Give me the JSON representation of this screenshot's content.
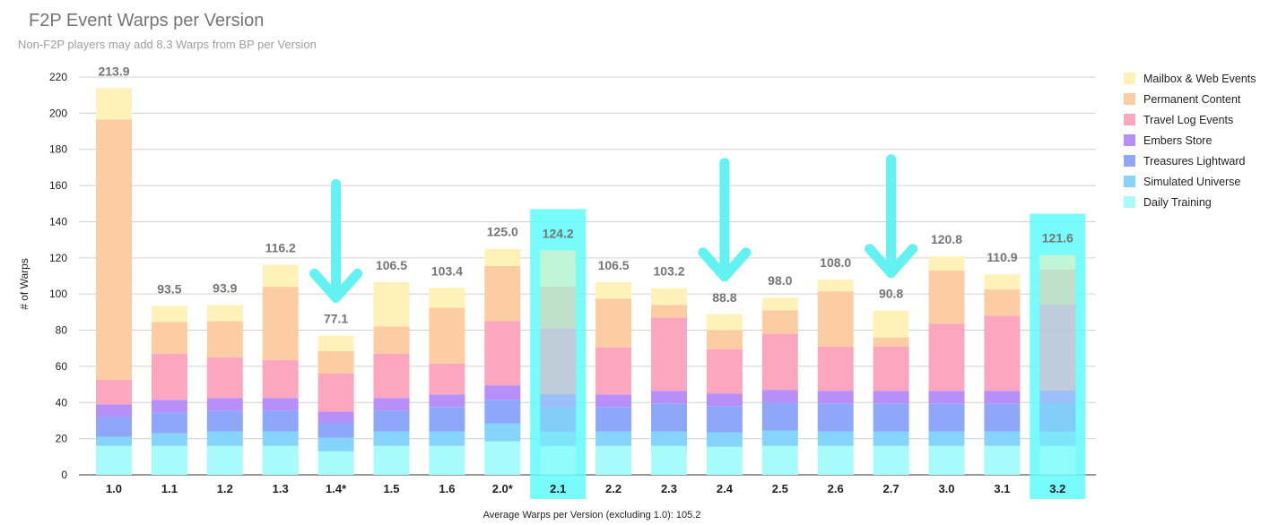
{
  "title": "F2P Event Warps per Version",
  "subtitle": "Non-F2P players may add 8.3 Warps from BP per Version",
  "footnote": "Average Warps per Version (excluding 1.0): 105.2",
  "chart_data": {
    "type": "bar",
    "stacked": true,
    "ylabel": "# of Warps",
    "ylim": [
      0,
      220
    ],
    "yticks": [
      0,
      20,
      40,
      60,
      80,
      100,
      120,
      140,
      160,
      180,
      200,
      220
    ],
    "grid": true,
    "legend_position": "right",
    "categories": [
      "1.0",
      "1.1",
      "1.2",
      "1.3",
      "1.4*",
      "1.5",
      "1.6",
      "2.0*",
      "2.1",
      "2.2",
      "2.3",
      "2.4",
      "2.5",
      "2.6",
      "2.7",
      "3.0",
      "3.1",
      "3.2"
    ],
    "totals": [
      "213.9",
      "93.5",
      "93.9",
      "116.2",
      "77.1",
      "106.5",
      "103.4",
      "125.0",
      "124.2",
      "106.5",
      "103.2",
      "88.8",
      "98.0",
      "108.0",
      "90.8",
      "120.8",
      "110.9",
      "121.6"
    ],
    "highlighted": [
      "2.1",
      "3.2"
    ],
    "annotations": [
      {
        "type": "arrow-down",
        "category": "1.4*"
      },
      {
        "type": "arrow-down",
        "category": "2.4"
      },
      {
        "type": "arrow-down",
        "category": "2.7"
      }
    ],
    "series": [
      {
        "name": "Daily Training",
        "color": "#a8fbfb",
        "values": [
          16,
          16,
          16,
          16,
          13,
          16,
          16,
          18.5,
          16,
          16,
          16,
          15.5,
          16,
          16,
          16,
          16,
          16,
          16
        ]
      },
      {
        "name": "Simulated Universe",
        "color": "#85d4fb",
        "values": [
          5,
          7,
          8,
          8,
          7.5,
          8,
          8,
          10,
          8,
          8,
          8,
          8,
          8.5,
          8,
          8,
          8,
          8,
          8
        ]
      },
      {
        "name": "Treasures Lightward",
        "color": "#8ea7f8",
        "values": [
          11,
          11.5,
          11.5,
          11.5,
          8.5,
          11.5,
          13.5,
          13,
          13.5,
          13.5,
          15.5,
          14.5,
          15.5,
          15.5,
          15.5,
          15.5,
          15.5,
          15.5
        ]
      },
      {
        "name": "Embers Store",
        "color": "#b88ef9",
        "values": [
          7,
          7,
          7,
          7,
          6,
          7,
          7,
          8,
          7,
          7,
          7,
          7,
          7,
          7,
          7,
          7,
          7,
          7
        ]
      },
      {
        "name": "Travel Log Events",
        "color": "#fca6bf",
        "values": [
          13.5,
          25.5,
          22.5,
          21,
          21,
          24.5,
          17,
          35.5,
          36.5,
          26,
          40.5,
          24.5,
          31,
          24.5,
          24.5,
          37,
          41.5,
          47.5
        ]
      },
      {
        "name": "Permanent Content",
        "color": "#fccca2",
        "values": [
          144,
          17.5,
          20,
          40.5,
          12.5,
          15,
          31,
          30.5,
          23,
          27,
          7,
          10.5,
          13,
          30.5,
          5,
          29.5,
          14.5,
          19.5
        ]
      },
      {
        "name": "Mailbox & Web Events",
        "color": "#fef2b8",
        "values": [
          17.4,
          9,
          8.9,
          12.2,
          8.6,
          24.5,
          10.9,
          9.5,
          20.2,
          9,
          9.2,
          8.8,
          7,
          6.5,
          14.8,
          7.8,
          8.4,
          8.1
        ]
      }
    ]
  }
}
